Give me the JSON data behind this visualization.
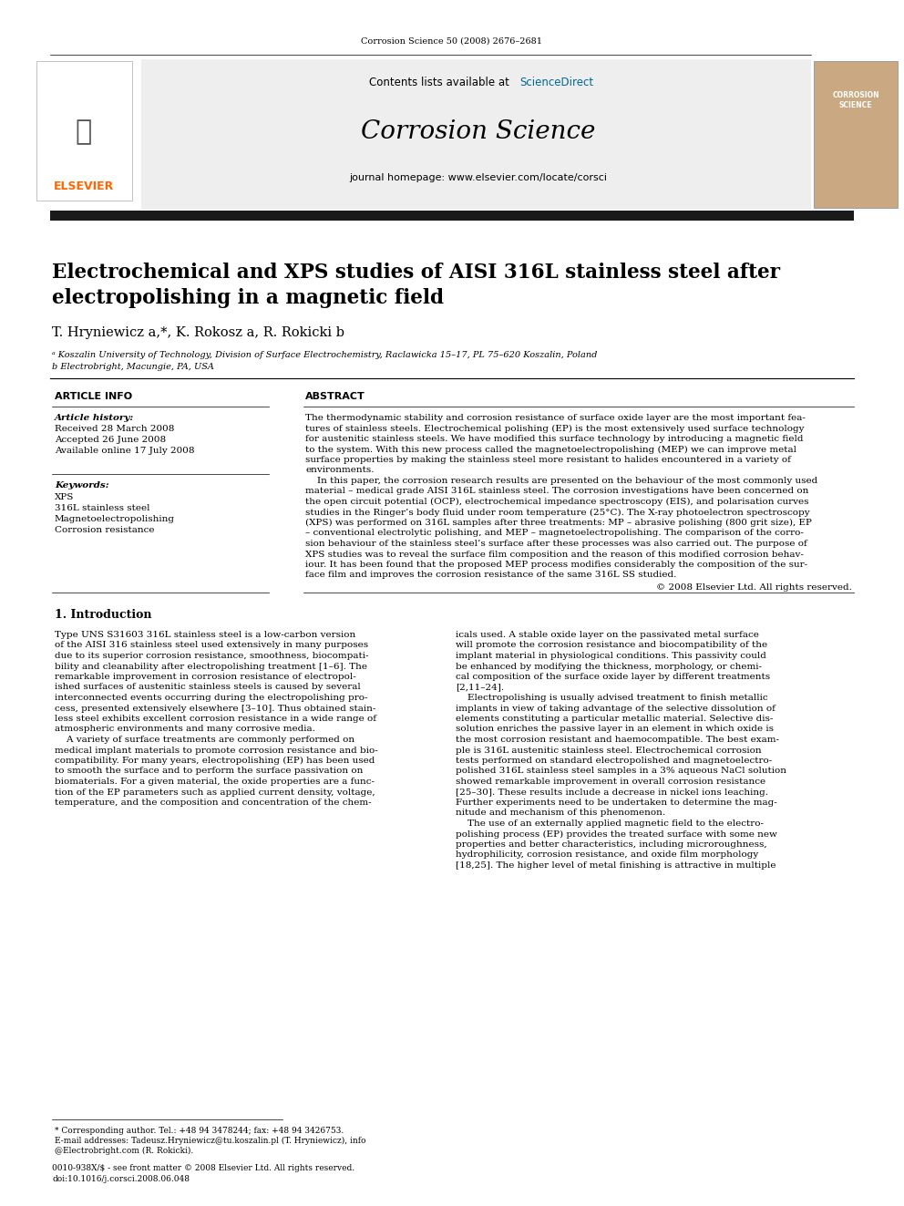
{
  "page_width": 9.92,
  "page_height": 13.23,
  "bg_color": "#ffffff",
  "header_journal_ref": "Corrosion Science 50 (2008) 2676–2681",
  "contents_text": "Contents lists available at ",
  "science_direct": "ScienceDirect",
  "journal_name": "Corrosion Science",
  "journal_homepage": "journal homepage: www.elsevier.com/locate/corsci",
  "elsevier_color": "#FF6600",
  "sciencedirect_color": "#006699",
  "black_bar_color": "#1a1a1a",
  "paper_title": "Electrochemical and XPS studies of AISI 316L stainless steel after\nelectropolishing in a magnetic field",
  "authors": "T. Hryniewicz a,*, K. Rokosz a, R. Rokicki b",
  "affil_a": "ᵃ Koszalin University of Technology, Division of Surface Electrochemistry, Raclawicka 15–17, PL 75–620 Koszalin, Poland",
  "affil_b": "b Electrobright, Macungie, PA, USA",
  "article_info_header": "ARTICLE INFO",
  "abstract_header": "ABSTRACT",
  "article_history_label": "Article history:",
  "received": "Received 28 March 2008",
  "accepted": "Accepted 26 June 2008",
  "available": "Available online 17 July 2008",
  "keywords_label": "Keywords:",
  "keywords": [
    "XPS",
    "316L stainless steel",
    "Magnetoelectropolishing",
    "Corrosion resistance"
  ],
  "copyright": "© 2008 Elsevier Ltd. All rights reserved.",
  "intro_header": "1. Introduction",
  "footer_line1": "* Corresponding author. Tel.: +48 94 3478244; fax: +48 94 3426753.",
  "footer_line2": "E-mail addresses: Tadeusz.Hryniewicz@tu.koszalin.pl (T. Hryniewicz), info",
  "footer_line3": "@Electrobright.com (R. Rokicki).",
  "footer_issn": "0010-938X/$ - see front matter © 2008 Elsevier Ltd. All rights reserved.",
  "footer_doi": "doi:10.1016/j.corsci.2008.06.048",
  "abstract_lines": [
    "The thermodynamic stability and corrosion resistance of surface oxide layer are the most important fea-",
    "tures of stainless steels. Electrochemical polishing (EP) is the most extensively used surface technology",
    "for austenitic stainless steels. We have modified this surface technology by introducing a magnetic field",
    "to the system. With this new process called the magnetoelectropolishing (MEP) we can improve metal",
    "surface properties by making the stainless steel more resistant to halides encountered in a variety of",
    "environments.",
    "    In this paper, the corrosion research results are presented on the behaviour of the most commonly used",
    "material – medical grade AISI 316L stainless steel. The corrosion investigations have been concerned on",
    "the open circuit potential (OCP), electrochemical impedance spectroscopy (EIS), and polarisation curves",
    "studies in the Ringer’s body fluid under room temperature (25°C). The X-ray photoelectron spectroscopy",
    "(XPS) was performed on 316L samples after three treatments: MP – abrasive polishing (800 grit size), EP",
    "– conventional electrolytic polishing, and MEP – magnetoelectropolishing. The comparison of the corro-",
    "sion behaviour of the stainless steel’s surface after these processes was also carried out. The purpose of",
    "XPS studies was to reveal the surface film composition and the reason of this modified corrosion behav-",
    "iour. It has been found that the proposed MEP process modifies considerably the composition of the sur-",
    "face film and improves the corrosion resistance of the same 316L SS studied."
  ],
  "intro_left_lines": [
    "Type UNS S31603 316L stainless steel is a low-carbon version",
    "of the AISI 316 stainless steel used extensively in many purposes",
    "due to its superior corrosion resistance, smoothness, biocompati-",
    "bility and cleanability after electropolishing treatment [1–6]. The",
    "remarkable improvement in corrosion resistance of electropol-",
    "ished surfaces of austenitic stainless steels is caused by several",
    "interconnected events occurring during the electropolishing pro-",
    "cess, presented extensively elsewhere [3–10]. Thus obtained stain-",
    "less steel exhibits excellent corrosion resistance in a wide range of",
    "atmospheric environments and many corrosive media.",
    "    A variety of surface treatments are commonly performed on",
    "medical implant materials to promote corrosion resistance and bio-",
    "compatibility. For many years, electropolishing (EP) has been used",
    "to smooth the surface and to perform the surface passivation on",
    "biomaterials. For a given material, the oxide properties are a func-",
    "tion of the EP parameters such as applied current density, voltage,",
    "temperature, and the composition and concentration of the chem-"
  ],
  "intro_right_lines": [
    "icals used. A stable oxide layer on the passivated metal surface",
    "will promote the corrosion resistance and biocompatibility of the",
    "implant material in physiological conditions. This passivity could",
    "be enhanced by modifying the thickness, morphology, or chemi-",
    "cal composition of the surface oxide layer by different treatments",
    "[2,11–24].",
    "    Electropolishing is usually advised treatment to finish metallic",
    "implants in view of taking advantage of the selective dissolution of",
    "elements constituting a particular metallic material. Selective dis-",
    "solution enriches the passive layer in an element in which oxide is",
    "the most corrosion resistant and haemocompatible. The best exam-",
    "ple is 316L austenitic stainless steel. Electrochemical corrosion",
    "tests performed on standard electropolished and magnetoelectro-",
    "polished 316L stainless steel samples in a 3% aqueous NaCl solution",
    "showed remarkable improvement in overall corrosion resistance",
    "[25–30]. These results include a decrease in nickel ions leaching.",
    "Further experiments need to be undertaken to determine the mag-",
    "nitude and mechanism of this phenomenon.",
    "    The use of an externally applied magnetic field to the electro-",
    "polishing process (EP) provides the treated surface with some new",
    "properties and better characteristics, including microroughness,",
    "hydrophilicity, corrosion resistance, and oxide film morphology",
    "[18,25]. The higher level of metal finishing is attractive in multiple"
  ]
}
